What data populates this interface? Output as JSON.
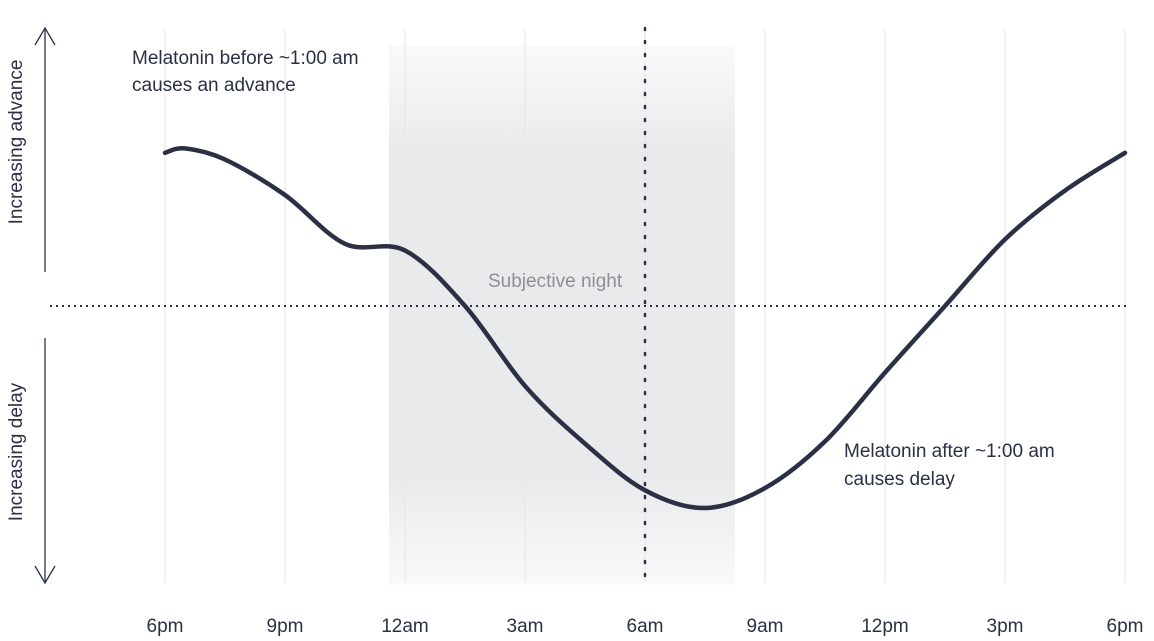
{
  "chart_data": {
    "type": "line",
    "x_tick_labels": [
      "6pm",
      "9pm",
      "12am",
      "3am",
      "6am",
      "9am",
      "12pm",
      "3pm",
      "6pm"
    ],
    "xlabel": "",
    "ylabel_top": "Increasing advance",
    "ylabel_bottom": "Increasing delay",
    "y_range": [
      -1,
      1
    ],
    "grid": "vertical",
    "shaded_region": {
      "label": "Subjective night",
      "start_clock": "11:30 pm",
      "end_clock": "8:30 am"
    },
    "reference_line_clock": "6:00 am",
    "series": [
      {
        "points": [
          {
            "x": "6:00 pm",
            "y": 0.69
          },
          {
            "x": "6:30 pm",
            "y": 0.71
          },
          {
            "x": "7:30 pm",
            "y": 0.66
          },
          {
            "x": "9:00 pm",
            "y": 0.5
          },
          {
            "x": "10:30 pm",
            "y": 0.28
          },
          {
            "x": "12:00 am",
            "y": 0.25
          },
          {
            "x": "1:30 am",
            "y": 0.0
          },
          {
            "x": "3:00 am",
            "y": -0.36
          },
          {
            "x": "4:30 am",
            "y": -0.62
          },
          {
            "x": "6:00 am",
            "y": -0.83
          },
          {
            "x": "7:30 am",
            "y": -0.91
          },
          {
            "x": "9:00 am",
            "y": -0.82
          },
          {
            "x": "10:30 am",
            "y": -0.61
          },
          {
            "x": "12:00 pm",
            "y": -0.3
          },
          {
            "x": "1:30 pm",
            "y": 0.0
          },
          {
            "x": "3:00 pm",
            "y": 0.3
          },
          {
            "x": "4:30 pm",
            "y": 0.52
          },
          {
            "x": "6:00 pm",
            "y": 0.69
          }
        ]
      }
    ],
    "annotations": {
      "advance": [
        "Melatonin before ~1:00 am",
        "causes an advance"
      ],
      "delay": [
        "Melatonin after ~1:00 am",
        "causes delay"
      ]
    },
    "colors": {
      "curve": "#2b3045",
      "shade": "#e9eaec",
      "grid": "#e6e6e8",
      "muted_text": "#8d8f97"
    }
  }
}
